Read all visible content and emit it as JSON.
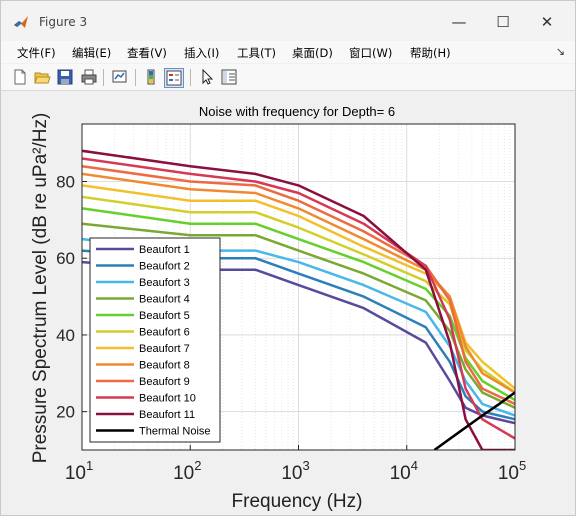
{
  "window": {
    "title": "Figure 3",
    "app_icon": "matlab-logo-icon",
    "buttons": {
      "minimize": "—",
      "maximize": "☐",
      "close": "✕"
    }
  },
  "menubar": {
    "items": [
      "文件(F)",
      "编辑(E)",
      "查看(V)",
      "插入(I)",
      "工具(T)",
      "桌面(D)",
      "窗口(W)",
      "帮助(H)"
    ],
    "overflow_arrow": "↘"
  },
  "toolbar": {
    "buttons": [
      "new-figure-icon",
      "open-file-icon",
      "save-icon",
      "print-icon",
      "link-plot-icon",
      "colorbar-icon",
      "legend-icon",
      "edit-plot-pointer-icon",
      "property-inspector-icon"
    ]
  },
  "chart_data": {
    "type": "line",
    "title": "Noise with frequency for Depth= 6",
    "xlabel": "Frequency (Hz)",
    "ylabel": "Pressure Spectrum Level (dB re uPa²/Hz)",
    "xscale": "log",
    "xlim": [
      10,
      100000
    ],
    "ylim": [
      10,
      95
    ],
    "xticks": [
      10,
      100,
      1000,
      10000,
      100000
    ],
    "xtick_labels": [
      [
        "10",
        "1"
      ],
      [
        "10",
        "2"
      ],
      [
        "10",
        "3"
      ],
      [
        "10",
        "4"
      ],
      [
        "10",
        "5"
      ]
    ],
    "yticks": [
      20,
      40,
      60,
      80
    ],
    "ytick_labels": [
      "20",
      "40",
      "60",
      "80"
    ],
    "grid": true,
    "legend_position": "lower-left",
    "series": [
      {
        "name": "Beaufort 1",
        "color": "#5a4a9c",
        "x": [
          10,
          100,
          400,
          1000,
          4000,
          15000,
          25000,
          35000,
          50000,
          100000
        ],
        "y": [
          59,
          57,
          57,
          53,
          47,
          38,
          28,
          21,
          19,
          17
        ]
      },
      {
        "name": "Beaufort 2",
        "color": "#2e7fb8",
        "x": [
          10,
          100,
          400,
          1000,
          4000,
          15000,
          25000,
          35000,
          50000,
          100000
        ],
        "y": [
          62,
          60,
          60,
          56,
          50,
          42,
          33,
          24,
          20,
          18
        ]
      },
      {
        "name": "Beaufort 3",
        "color": "#48b8e8",
        "x": [
          10,
          100,
          400,
          1000,
          4000,
          15000,
          25000,
          35000,
          50000,
          100000
        ],
        "y": [
          65,
          62,
          62,
          59,
          53,
          46,
          37,
          28,
          22,
          19
        ]
      },
      {
        "name": "Beaufort 4",
        "color": "#7ba832",
        "x": [
          10,
          100,
          400,
          1000,
          4000,
          15000,
          25000,
          35000,
          50000,
          100000
        ],
        "y": [
          69,
          66,
          66,
          62,
          56,
          49,
          41,
          31,
          25,
          21
        ]
      },
      {
        "name": "Beaufort 5",
        "color": "#66d02a",
        "x": [
          10,
          100,
          400,
          1000,
          4000,
          15000,
          25000,
          35000,
          50000,
          100000
        ],
        "y": [
          73,
          69,
          69,
          65,
          59,
          52,
          45,
          34,
          28,
          23
        ]
      },
      {
        "name": "Beaufort 6",
        "color": "#d2cf2a",
        "x": [
          10,
          100,
          400,
          1000,
          4000,
          15000,
          25000,
          35000,
          50000,
          100000
        ],
        "y": [
          76,
          72,
          72,
          68,
          61,
          54,
          48,
          36,
          31,
          25
        ]
      },
      {
        "name": "Beaufort 7",
        "color": "#f2c02a",
        "x": [
          10,
          100,
          400,
          1000,
          4000,
          15000,
          25000,
          35000,
          50000,
          100000
        ],
        "y": [
          79,
          75,
          75,
          71,
          63,
          56,
          50,
          38,
          33,
          26
        ]
      },
      {
        "name": "Beaufort 8",
        "color": "#f08a30",
        "x": [
          10,
          100,
          400,
          1000,
          4000,
          15000,
          25000,
          35000,
          50000,
          100000
        ],
        "y": [
          82,
          78,
          77,
          73,
          65,
          57,
          50,
          37,
          30,
          25
        ]
      },
      {
        "name": "Beaufort 9",
        "color": "#ee6a40",
        "x": [
          10,
          100,
          400,
          1000,
          4000,
          15000,
          25000,
          35000,
          50000,
          100000
        ],
        "y": [
          84,
          80,
          79,
          75,
          67,
          58,
          49,
          33,
          26,
          22
        ]
      },
      {
        "name": "Beaufort 10",
        "color": "#d43a55",
        "x": [
          10,
          100,
          400,
          1000,
          4000,
          15000,
          25000,
          35000,
          50000,
          100000
        ],
        "y": [
          86,
          82,
          80,
          77,
          69,
          58,
          44,
          26,
          18,
          13
        ]
      },
      {
        "name": "Beaufort 11",
        "color": "#8a1040",
        "x": [
          10,
          100,
          400,
          1000,
          4000,
          15000,
          25000,
          35000,
          50000,
          100000
        ],
        "y": [
          88,
          84,
          82,
          79,
          71,
          57,
          38,
          18,
          10,
          10
        ]
      },
      {
        "name": "Thermal Noise",
        "color": "#000000",
        "x": [
          18000,
          30000,
          50000,
          70000,
          100000
        ],
        "y": [
          10,
          14.5,
          19,
          21.8,
          25
        ]
      }
    ]
  }
}
